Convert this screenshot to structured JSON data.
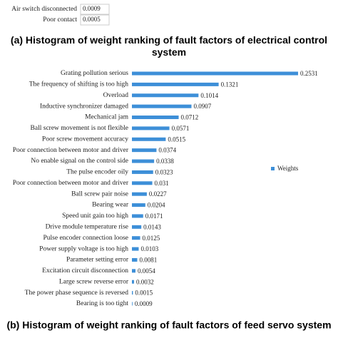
{
  "chart_data": [
    {
      "type": "bar",
      "categories": [
        "Air switch disconnected",
        "Poor contact"
      ],
      "values": [
        0.0009,
        0.0005
      ],
      "caption": "(a) Histogram of weight ranking of fault factors of electrical control system"
    },
    {
      "type": "bar",
      "categories": [
        "Grating pollution serious",
        "The frequency of shifting is too high",
        "Overload",
        "Inductive synchronizer damaged",
        "Mechanical jam",
        "Ball screw movement is not flexible",
        "Poor screw movement accuracy",
        "Poor connection between motor and driver",
        "No enable signal on the control side",
        "The pulse encoder oily",
        "Poor connection between motor and driver",
        "Ball screw pair noise",
        "Bearing wear",
        "Speed unit gain too high",
        "Drive module temperature rise",
        "Pulse encoder connection loose",
        "Power supply voltage is too high",
        "Parameter setting error",
        "Excitation circuit disconnection",
        "Large screw reverse error",
        "The power phase sequence is reversed",
        "Bearing is too tight"
      ],
      "series": [
        {
          "name": "Weights",
          "color": "#3d8fd8",
          "values": [
            0.2531,
            0.1321,
            0.1014,
            0.0907,
            0.0712,
            0.0571,
            0.0515,
            0.0374,
            0.0338,
            0.0323,
            0.031,
            0.0227,
            0.0204,
            0.0171,
            0.0143,
            0.0125,
            0.0103,
            0.0081,
            0.0054,
            0.0032,
            0.0015,
            0.0009
          ]
        }
      ],
      "caption": "(b) Histogram of weight ranking of fault factors of feed servo system"
    }
  ]
}
